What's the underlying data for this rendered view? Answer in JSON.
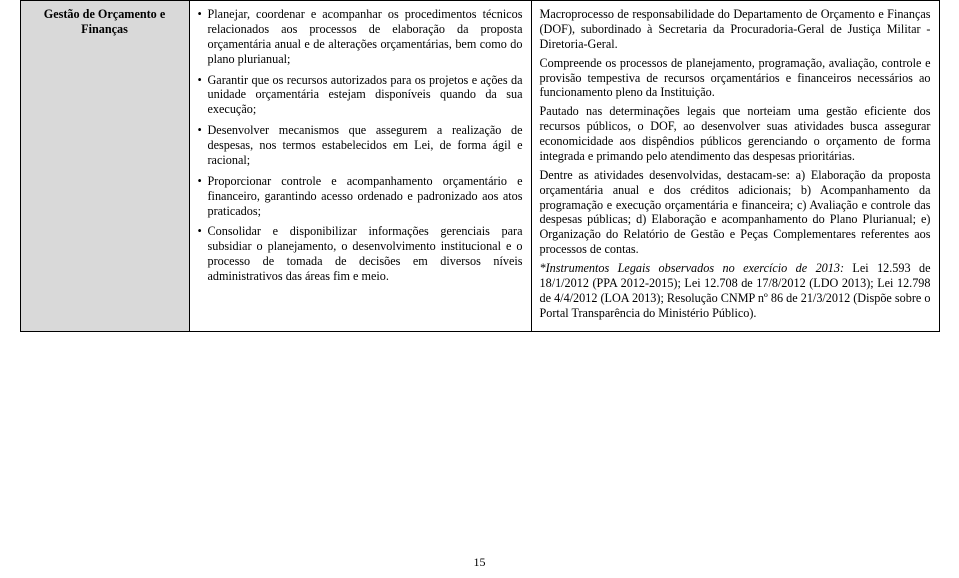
{
  "table": {
    "row_header": "Gestão de Orçamento e Finanças",
    "bullets": [
      "Planejar, coordenar e acompanhar os procedimentos técnicos relacionados aos processos de elaboração da proposta orçamentária anual e de alterações orçamentárias, bem como do plano plurianual;",
      "Garantir que os recursos autorizados para os projetos e ações da unidade orçamentária estejam disponíveis quando da sua execução;",
      "Desenvolver mecanismos que assegurem a realização de despesas, nos termos estabelecidos em Lei, de forma ágil e racional;",
      "Proporcionar controle e acompanhamento orçamentário e financeiro, garantindo acesso ordenado e padronizado aos atos praticados;",
      "Consolidar e disponibilizar informações gerenciais para subsidiar o planejamento, o desenvolvimento institucional e o processo de tomada de decisões em diversos níveis administrativos das áreas fim e meio."
    ],
    "paragraphs": [
      "Macroprocesso de responsabilidade do Departamento de Orçamento e Finanças (DOF), subordinado à Secretaria da Procuradoria-Geral de Justiça Militar - Diretoria-Geral.",
      "Compreende os processos de planejamento, programação, avaliação, controle e provisão tempestiva de recursos orçamentários e financeiros necessários ao funcionamento pleno da Instituição.",
      "Pautado nas determinações legais que norteiam uma gestão eficiente dos recursos públicos, o DOF, ao desenvolver suas atividades busca assegurar economicidade aos dispêndios públicos gerenciando o orçamento de forma integrada e primando pelo atendimento das despesas prioritárias.",
      "Dentre as atividades desenvolvidas, destacam-se: a) Elaboração da proposta orçamentária anual e dos créditos adicionais; b) Acompanhamento da programação e execução orçamentária e financeira; c) Avaliação e controle das despesas públicas; d) Elaboração e acompanhamento do Plano Plurianual; e) Organização do Relatório de Gestão e Peças Complementares referentes aos processos de contas."
    ],
    "italic_line": "*Instrumentos Legais observados no exercício de 2013:",
    "last_para": "Lei 12.593 de 18/1/2012 (PPA 2012-2015); Lei 12.708 de 17/8/2012 (LDO 2013); Lei 12.798 de 4/4/2012 (LOA 2013); Resolução CNMP nº 86 de 21/3/2012 (Dispõe sobre o Portal Transparência do Ministério Público)."
  },
  "page_number": "15"
}
